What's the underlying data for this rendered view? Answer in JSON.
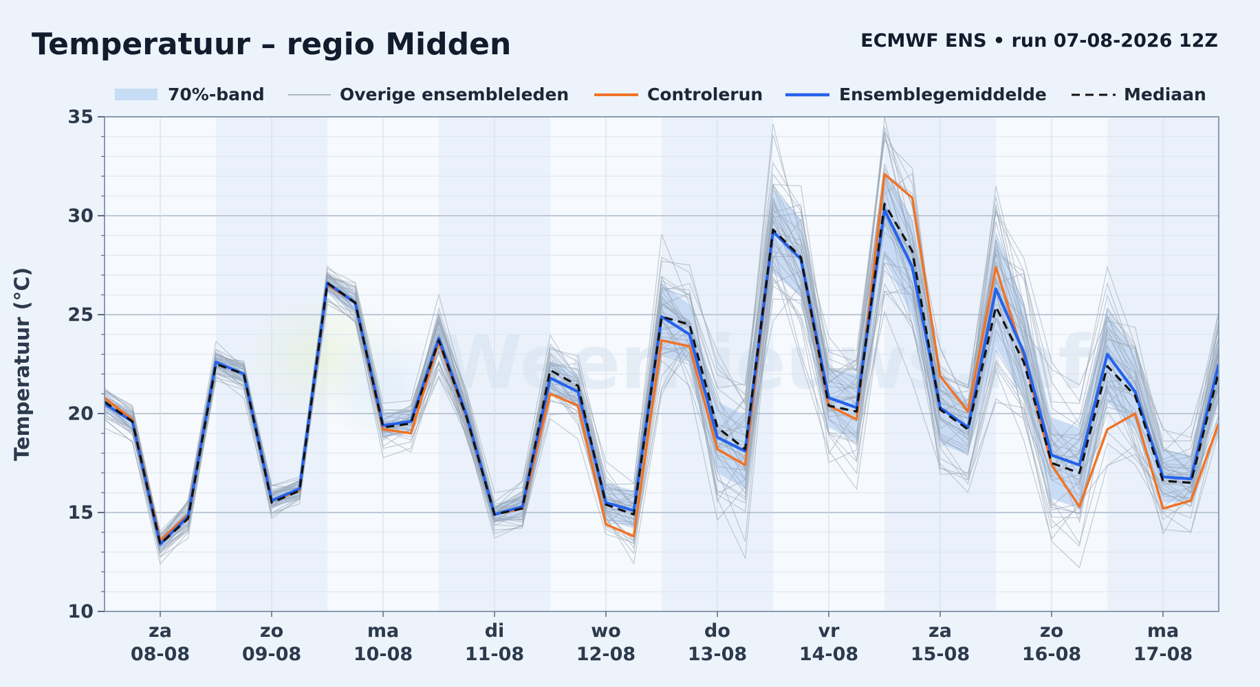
{
  "header": {
    "title": "Temperatuur – regio Midden",
    "subtitle": "ECMWF ENS • run 07-08-2026 12Z"
  },
  "legend": [
    {
      "key": "band",
      "label": "70%-band",
      "color": "#c7dcf5"
    },
    {
      "key": "members",
      "label": "Overige ensembleleden",
      "color": "#9aa6b4"
    },
    {
      "key": "control",
      "label": "Controlerun",
      "color": "#f07326"
    },
    {
      "key": "mean",
      "label": "Ensemblegemiddelde",
      "color": "#2563eb"
    },
    {
      "key": "median",
      "label": "Mediaan",
      "color": "#111111"
    }
  ],
  "watermark": "Weernieuws.info",
  "chart_data": {
    "type": "line",
    "title": "Temperatuur – regio Midden",
    "ylabel": "Temperatuur (°C)",
    "xlabel": "",
    "ylim": [
      10,
      35
    ],
    "yticks": [
      10,
      15,
      20,
      25,
      30,
      35
    ],
    "xlim": [
      "07-08 12:00",
      "17-08 12:00"
    ],
    "x_step_hours": 6,
    "xticks": [
      {
        "day": "za",
        "date": "08-08"
      },
      {
        "day": "zo",
        "date": "09-08"
      },
      {
        "day": "ma",
        "date": "10-08"
      },
      {
        "day": "di",
        "date": "11-08"
      },
      {
        "day": "wo",
        "date": "12-08"
      },
      {
        "day": "do",
        "date": "13-08"
      },
      {
        "day": "vr",
        "date": "14-08"
      },
      {
        "day": "za",
        "date": "15-08"
      },
      {
        "day": "zo",
        "date": "16-08"
      },
      {
        "day": "ma",
        "date": "17-08"
      }
    ],
    "x": [
      "07-08 12:00",
      "07-08 18:00",
      "08-08 00:00",
      "08-08 06:00",
      "08-08 12:00",
      "08-08 18:00",
      "09-08 00:00",
      "09-08 06:00",
      "09-08 12:00",
      "09-08 18:00",
      "10-08 00:00",
      "10-08 06:00",
      "10-08 12:00",
      "10-08 18:00",
      "11-08 00:00",
      "11-08 06:00",
      "11-08 12:00",
      "11-08 18:00",
      "12-08 00:00",
      "12-08 06:00",
      "12-08 12:00",
      "12-08 18:00",
      "13-08 00:00",
      "13-08 06:00",
      "13-08 12:00",
      "13-08 18:00",
      "14-08 00:00",
      "14-08 06:00",
      "14-08 12:00",
      "14-08 18:00",
      "15-08 00:00",
      "15-08 06:00",
      "15-08 12:00",
      "15-08 18:00",
      "16-08 00:00",
      "16-08 06:00",
      "16-08 12:00",
      "16-08 18:00",
      "17-08 00:00",
      "17-08 06:00",
      "17-08 12:00"
    ],
    "series": [
      {
        "name": "Controlerun",
        "color": "#f07326",
        "values": [
          20.8,
          19.7,
          13.6,
          14.9,
          22.6,
          22.0,
          15.6,
          16.1,
          26.5,
          25.6,
          19.2,
          19.0,
          23.6,
          19.8,
          14.9,
          15.2,
          21.0,
          20.4,
          14.4,
          13.8,
          23.7,
          23.4,
          18.2,
          17.4,
          29.2,
          27.8,
          20.4,
          19.7,
          32.1,
          30.9,
          21.9,
          20.1,
          27.4,
          22.9,
          17.4,
          15.3,
          19.2,
          20.0,
          15.2,
          15.6,
          19.5
        ]
      },
      {
        "name": "Ensemblegemiddelde",
        "color": "#2563eb",
        "values": [
          20.5,
          19.6,
          13.4,
          14.8,
          22.6,
          22.0,
          15.6,
          16.2,
          26.6,
          25.6,
          19.4,
          19.6,
          23.8,
          19.9,
          14.9,
          15.3,
          21.8,
          21.1,
          15.5,
          15.1,
          24.9,
          24.0,
          18.8,
          18.1,
          29.2,
          27.8,
          20.8,
          20.3,
          30.3,
          27.4,
          20.3,
          19.3,
          26.3,
          23.1,
          17.9,
          17.4,
          23.0,
          21.1,
          16.8,
          16.7,
          22.5
        ]
      },
      {
        "name": "Mediaan",
        "color": "#111111",
        "values": [
          20.6,
          19.6,
          13.4,
          14.7,
          22.5,
          22.0,
          15.5,
          16.1,
          26.6,
          25.6,
          19.3,
          19.5,
          23.7,
          19.8,
          14.9,
          15.2,
          22.2,
          21.4,
          15.4,
          14.9,
          24.9,
          24.5,
          19.3,
          18.2,
          29.3,
          27.9,
          20.4,
          20.1,
          30.6,
          28.2,
          20.2,
          19.2,
          25.4,
          22.6,
          17.5,
          17.0,
          22.4,
          20.9,
          16.6,
          16.5,
          22.1
        ]
      }
    ],
    "band_70": {
      "lower": [
        20.1,
        19.2,
        13.1,
        14.4,
        22.2,
        21.6,
        15.2,
        15.8,
        26.1,
        25.1,
        18.8,
        19.1,
        23.0,
        19.2,
        14.5,
        14.8,
        21.0,
        20.3,
        14.6,
        14.2,
        23.0,
        22.6,
        17.0,
        16.2,
        27.1,
        25.9,
        19.3,
        18.6,
        27.8,
        24.9,
        18.5,
        17.9,
        23.4,
        20.8,
        15.7,
        15.2,
        20.6,
        19.2,
        15.5,
        15.6,
        20.8
      ],
      "upper": [
        21.0,
        20.1,
        13.8,
        15.2,
        23.0,
        22.4,
        16.0,
        16.6,
        27.0,
        26.1,
        20.0,
        20.2,
        24.8,
        20.6,
        15.3,
        15.9,
        22.7,
        22.0,
        16.5,
        16.1,
        26.6,
        25.5,
        20.6,
        19.9,
        31.4,
        29.8,
        22.3,
        22.0,
        32.3,
        29.8,
        21.9,
        20.7,
        29.2,
        25.6,
        19.8,
        19.3,
        25.2,
        23.0,
        18.2,
        17.9,
        24.0
      ]
    },
    "members_shown": 40,
    "grid": true,
    "legend_position": "top"
  }
}
